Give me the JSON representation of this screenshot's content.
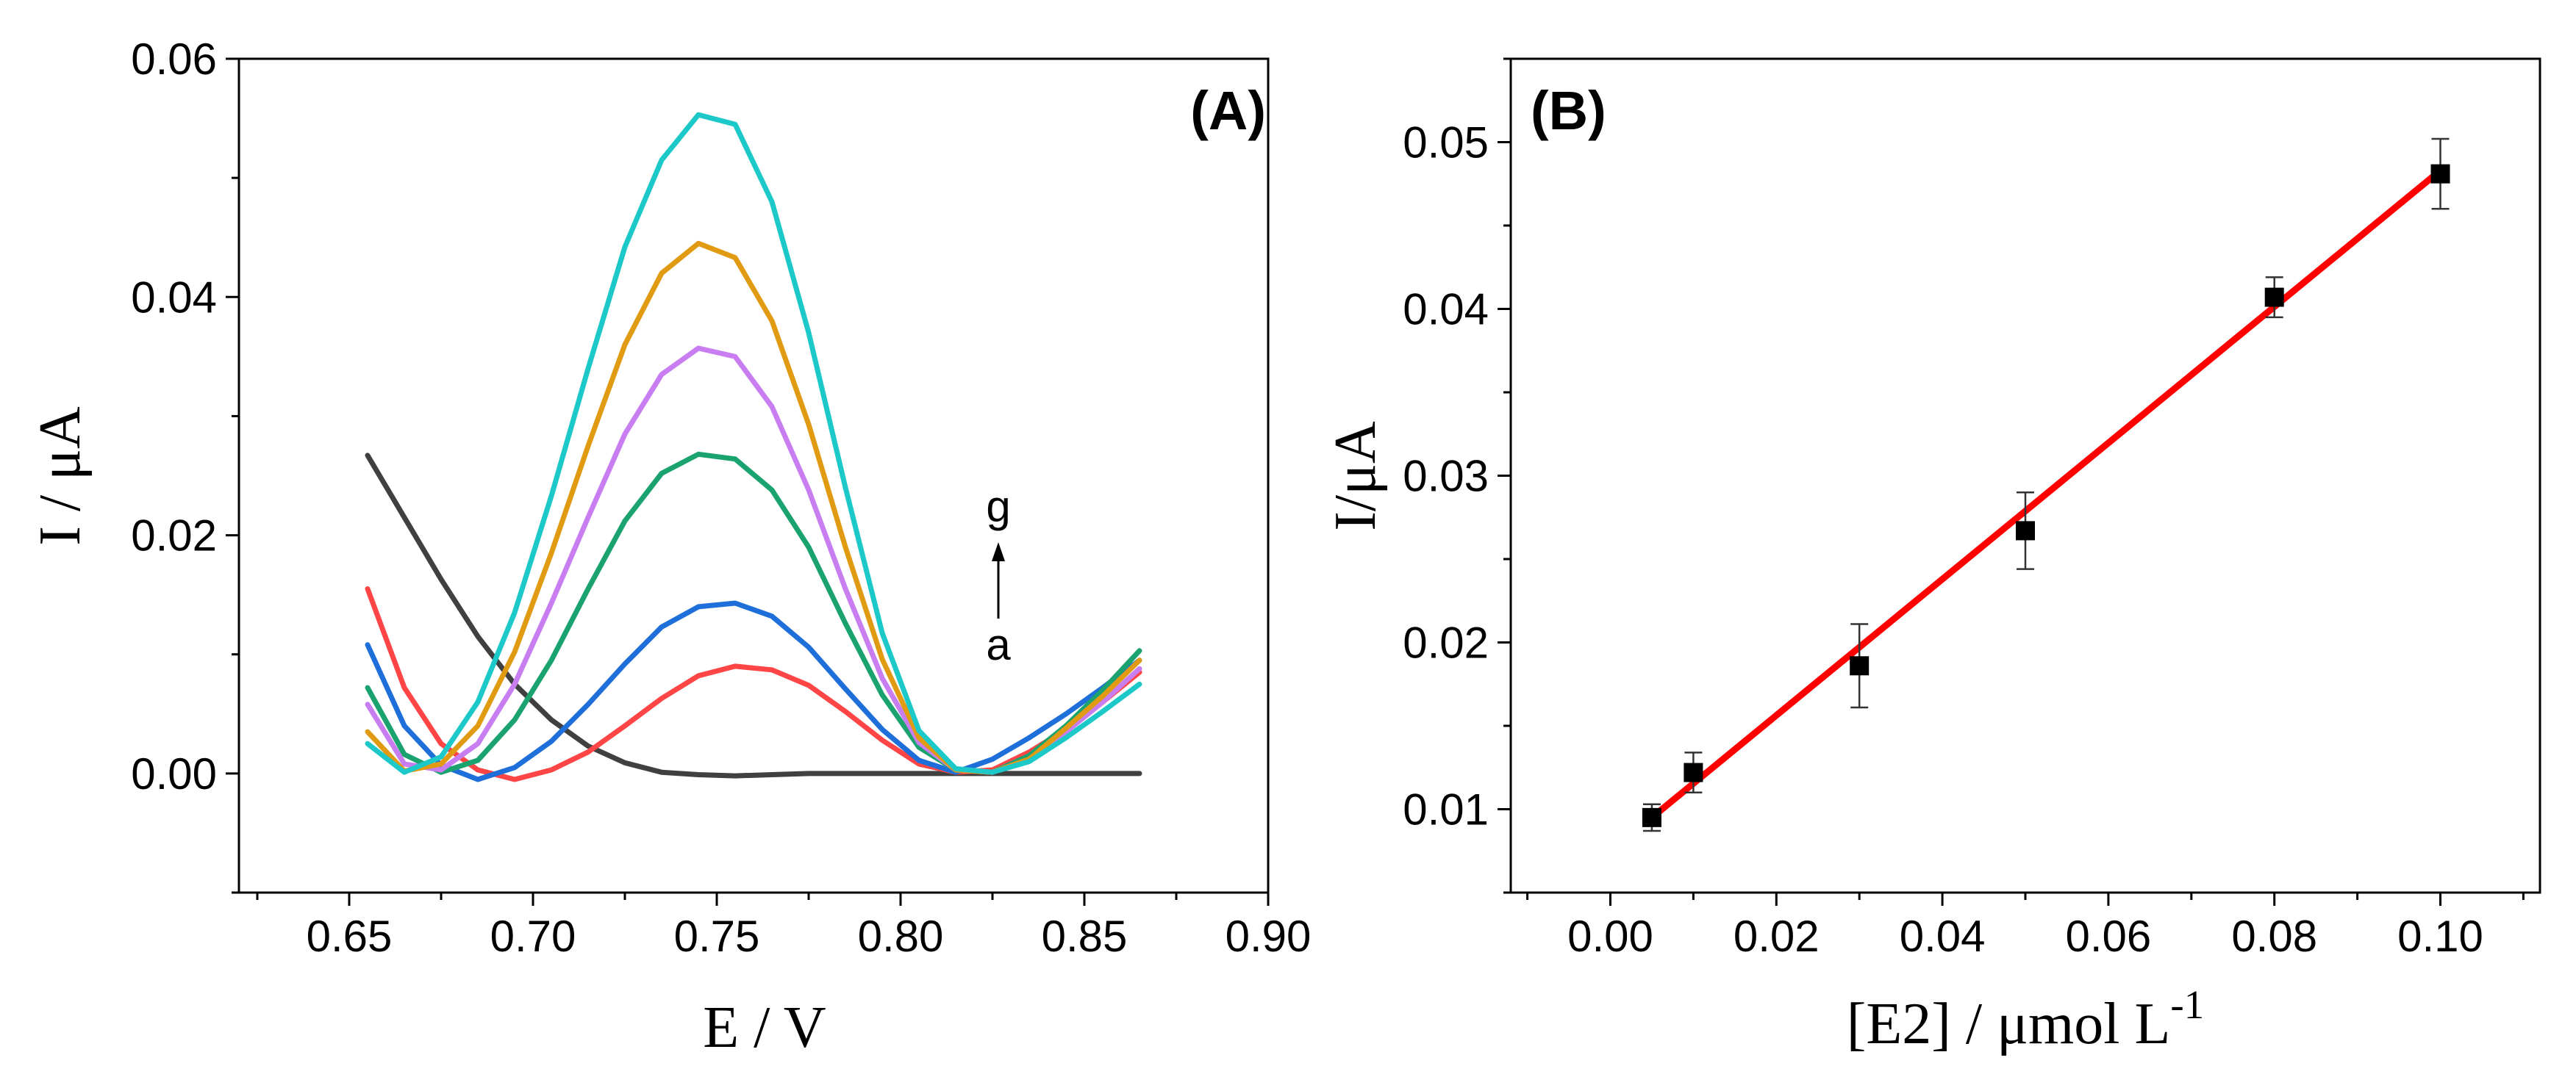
{
  "chart_data": [
    {
      "type": "line",
      "panel_label": "(A)",
      "xlabel": "E / V",
      "ylabel": "I / μA",
      "xlim": [
        0.62,
        0.9
      ],
      "ylim": [
        -0.01,
        0.06
      ],
      "xticks": [
        "0.65",
        "0.70",
        "0.75",
        "0.80",
        "0.85",
        "0.90"
      ],
      "yticks": [
        "0.00",
        "0.02",
        "0.04",
        "0.06"
      ],
      "grid": false,
      "annotation": {
        "top": "g",
        "bottom": "a"
      },
      "series": [
        {
          "color": "#404040",
          "x": [
            0.655,
            0.665,
            0.675,
            0.685,
            0.695,
            0.705,
            0.715,
            0.725,
            0.735,
            0.745,
            0.755,
            0.765,
            0.775,
            0.785,
            0.795,
            0.805,
            0.815,
            0.825,
            0.835,
            0.845,
            0.855,
            0.865
          ],
          "y": [
            0.0267,
            0.0215,
            0.0163,
            0.0115,
            0.0075,
            0.0045,
            0.0023,
            0.0009,
            0.0001,
            -0.0001,
            -0.0002,
            -0.0001,
            0.0,
            0.0,
            0.0,
            0.0,
            0.0,
            0.0,
            0.0,
            0.0,
            0.0,
            0.0
          ]
        },
        {
          "color": "#FF4545",
          "x": [
            0.655,
            0.665,
            0.675,
            0.685,
            0.695,
            0.705,
            0.715,
            0.725,
            0.735,
            0.745,
            0.755,
            0.765,
            0.775,
            0.785,
            0.795,
            0.805,
            0.815,
            0.825,
            0.835,
            0.845,
            0.855,
            0.865
          ],
          "y": [
            0.0155,
            0.0072,
            0.0025,
            0.0003,
            -0.0005,
            0.0003,
            0.0018,
            0.004,
            0.0063,
            0.0082,
            0.009,
            0.0087,
            0.0074,
            0.0052,
            0.0028,
            0.0008,
            0.0001,
            0.0003,
            0.0018,
            0.0037,
            0.006,
            0.0085
          ]
        },
        {
          "color": "#1E6FD9",
          "x": [
            0.655,
            0.665,
            0.675,
            0.685,
            0.695,
            0.705,
            0.715,
            0.725,
            0.735,
            0.745,
            0.755,
            0.765,
            0.775,
            0.785,
            0.795,
            0.805,
            0.815,
            0.825,
            0.835,
            0.845,
            0.855,
            0.865
          ],
          "y": [
            0.0108,
            0.004,
            0.0007,
            -0.0005,
            0.0005,
            0.0027,
            0.0058,
            0.0092,
            0.0123,
            0.014,
            0.0143,
            0.0132,
            0.0106,
            0.0071,
            0.0037,
            0.0011,
            0.0001,
            0.0012,
            0.003,
            0.005,
            0.0072,
            0.0095
          ]
        },
        {
          "color": "#1AA36F",
          "x": [
            0.655,
            0.665,
            0.675,
            0.685,
            0.695,
            0.705,
            0.715,
            0.725,
            0.735,
            0.745,
            0.755,
            0.765,
            0.775,
            0.785,
            0.795,
            0.805,
            0.815,
            0.825,
            0.835,
            0.845,
            0.855,
            0.865
          ],
          "y": [
            0.0072,
            0.0016,
            0.0001,
            0.0011,
            0.0045,
            0.0095,
            0.0155,
            0.0212,
            0.0252,
            0.0268,
            0.0264,
            0.0238,
            0.019,
            0.0126,
            0.0066,
            0.0022,
            0.0003,
            0.0001,
            0.0015,
            0.004,
            0.007,
            0.0103
          ]
        },
        {
          "color": "#C87EF0",
          "x": [
            0.655,
            0.665,
            0.675,
            0.685,
            0.695,
            0.705,
            0.715,
            0.725,
            0.735,
            0.745,
            0.755,
            0.765,
            0.775,
            0.785,
            0.795,
            0.805,
            0.815,
            0.825,
            0.835,
            0.845,
            0.855,
            0.865
          ],
          "y": [
            0.0058,
            0.0008,
            0.0003,
            0.0025,
            0.0075,
            0.0143,
            0.0215,
            0.0285,
            0.0335,
            0.0357,
            0.035,
            0.0308,
            0.0238,
            0.0155,
            0.008,
            0.0026,
            0.0003,
            0.0001,
            0.0012,
            0.0035,
            0.006,
            0.0088
          ]
        },
        {
          "color": "#E09B12",
          "x": [
            0.655,
            0.665,
            0.675,
            0.685,
            0.695,
            0.705,
            0.715,
            0.725,
            0.735,
            0.745,
            0.755,
            0.765,
            0.775,
            0.785,
            0.795,
            0.805,
            0.815,
            0.825,
            0.835,
            0.845,
            0.855,
            0.865
          ],
          "y": [
            0.0035,
            0.0002,
            0.0008,
            0.004,
            0.0102,
            0.0185,
            0.0275,
            0.036,
            0.042,
            0.0445,
            0.0433,
            0.038,
            0.0293,
            0.019,
            0.0096,
            0.003,
            0.0003,
            0.0001,
            0.0012,
            0.0038,
            0.0065,
            0.0095
          ]
        },
        {
          "color": "#1CC8C8",
          "x": [
            0.655,
            0.665,
            0.675,
            0.685,
            0.695,
            0.705,
            0.715,
            0.725,
            0.735,
            0.745,
            0.755,
            0.765,
            0.775,
            0.785,
            0.795,
            0.805,
            0.815,
            0.825,
            0.835,
            0.845,
            0.855,
            0.865
          ],
          "y": [
            0.0025,
            0.0001,
            0.0014,
            0.006,
            0.0135,
            0.0233,
            0.034,
            0.0442,
            0.0515,
            0.0553,
            0.0545,
            0.048,
            0.037,
            0.024,
            0.0118,
            0.0036,
            0.0004,
            0.0001,
            0.001,
            0.003,
            0.0052,
            0.0075
          ]
        }
      ]
    },
    {
      "type": "scatter",
      "panel_label": "(B)",
      "xlabel": "[E2] / μmol L",
      "xlabel_sup": "-1",
      "ylabel": "I/μA",
      "xlim": [
        -0.012,
        0.112
      ],
      "ylim": [
        0.005,
        0.055
      ],
      "xticks": [
        "0.00",
        "0.02",
        "0.04",
        "0.06",
        "0.08",
        "0.10"
      ],
      "yticks": [
        "0.01",
        "0.02",
        "0.03",
        "0.04",
        "0.05"
      ],
      "grid": false,
      "points": {
        "x": [
          0.005,
          0.01,
          0.03,
          0.05,
          0.08,
          0.1
        ],
        "y": [
          0.0095,
          0.0122,
          0.0186,
          0.0267,
          0.0407,
          0.0481
        ],
        "err": [
          0.0008,
          0.0012,
          0.0025,
          0.0023,
          0.0012,
          0.0021
        ],
        "color": "#000000"
      },
      "fit": {
        "x": [
          0.005,
          0.1
        ],
        "y": [
          0.0095,
          0.0483
        ],
        "color": "#FF0000"
      }
    }
  ]
}
